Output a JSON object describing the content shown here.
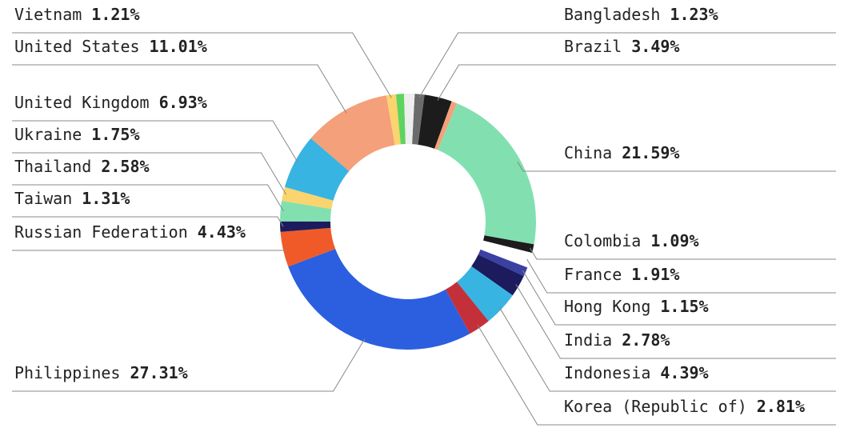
{
  "chart_data": {
    "type": "donut",
    "categories": [
      "Bangladesh",
      "Brazil",
      null,
      "China",
      "Colombia",
      "France",
      "Hong Kong",
      "India",
      "Indonesia",
      "Korea (Republic of)",
      "Philippines",
      "Russian Federation",
      "Taiwan",
      "Thailand",
      "Ukraine",
      "United Kingdom",
      "United States",
      "Vietnam",
      null,
      null
    ],
    "values": [
      1.23,
      3.49,
      0.7,
      21.59,
      1.09,
      1.91,
      1.15,
      2.78,
      4.39,
      2.81,
      27.31,
      4.43,
      1.31,
      2.58,
      1.75,
      6.93,
      11.01,
      1.21,
      1.0,
      1.33
    ],
    "value_labels": [
      "1.23%",
      "3.49%",
      null,
      "21.59%",
      "1.09%",
      "1.91%",
      "1.15%",
      "2.78%",
      "4.39%",
      "2.81%",
      "27.31%",
      "4.43%",
      "1.31%",
      "2.58%",
      "1.75%",
      "6.93%",
      "11.01%",
      "1.21%",
      null,
      null
    ],
    "colors": [
      "#6b6b6b",
      "#1c1c1c",
      "#f4a07a",
      "#82e0b0",
      "#1c1c1c",
      "#ffffff",
      "#3b41a3",
      "#1b1b5e",
      "#38b4e2",
      "#c4303a",
      "#2b5fe0",
      "#f05a28",
      "#1b1b5e",
      "#82e0b0",
      "#fad46e",
      "#38b4e2",
      "#f4a07a",
      "#fad46e",
      "#5fd35f",
      "#eeeeee"
    ]
  }
}
